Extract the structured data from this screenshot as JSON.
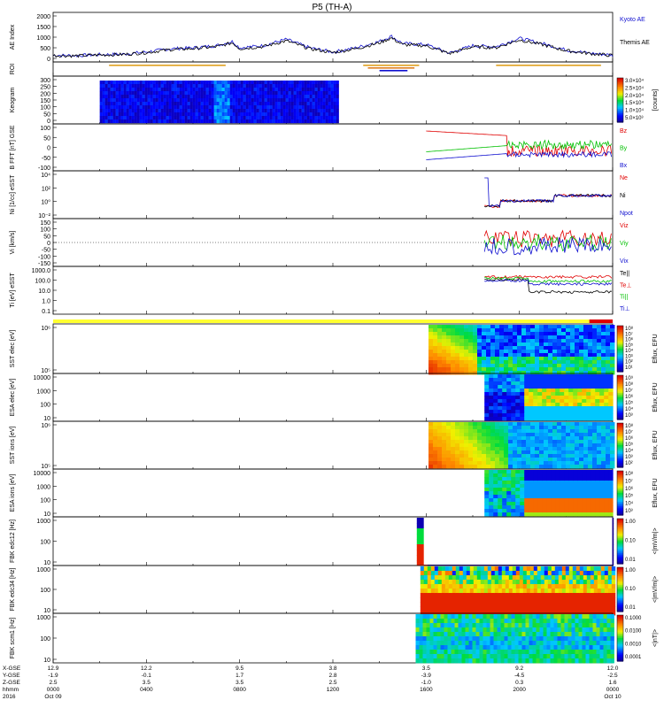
{
  "title": "P5 (TH-A)",
  "colors": {
    "blue": "#1010d0",
    "red": "#e00000",
    "green": "#00c000",
    "black": "#000000",
    "yellow": "#ffff30",
    "orange": "#e0a020"
  },
  "chart_data": [
    {
      "type": "line",
      "panel": "ae",
      "ylabel": "AE Index",
      "ylim": [
        0,
        2000
      ],
      "yticks": [
        "2000",
        "1500",
        "1000",
        "500",
        "0"
      ],
      "series": [
        {
          "name": "Kyoto AE",
          "color": "#1010d0"
        },
        {
          "name": "Themis AE",
          "color": "#000000"
        }
      ],
      "hours": [
        0,
        1,
        2,
        3,
        4,
        5,
        6,
        7,
        7.7,
        8,
        9,
        10,
        11,
        12,
        13,
        14,
        14.5,
        15,
        16,
        17,
        18,
        19,
        20,
        21,
        22,
        23,
        24
      ],
      "values": [
        150,
        130,
        180,
        200,
        300,
        450,
        500,
        600,
        800,
        500,
        600,
        900,
        500,
        300,
        500,
        800,
        1050,
        700,
        650,
        250,
        600,
        550,
        950,
        700,
        400,
        250,
        150
      ]
    },
    {
      "type": "bar",
      "panel": "roi",
      "ylabel": "ROI"
    },
    {
      "type": "heatmap",
      "panel": "keogram",
      "ylabel": "Keogram",
      "yticks": [
        "300",
        "250",
        "200",
        "150",
        "100",
        "50",
        "0"
      ],
      "colorbar": [
        "3.0×10⁴",
        "2.5×10⁴",
        "2.0×10⁴",
        "1.5×10⁴",
        "1.0×10⁴",
        "5.0×10³"
      ],
      "cbunit": "[counts]"
    },
    {
      "type": "line",
      "panel": "bfield",
      "ylabel": "B FFT [nT] GSE",
      "yticks": [
        "100",
        "50",
        "0",
        "-50",
        "-100"
      ],
      "series": [
        {
          "name": "Bz",
          "color": "#e00000"
        },
        {
          "name": "By",
          "color": "#00c000"
        },
        {
          "name": "Bx",
          "color": "#1010d0"
        }
      ]
    },
    {
      "type": "line",
      "panel": "density",
      "ylabel": "Ni [1/cc] eSST",
      "yticks": [
        "10⁴",
        "10²",
        "10⁰",
        "10⁻²"
      ],
      "series": [
        {
          "name": "Ne",
          "color": "#e00000"
        },
        {
          "name": "Ni",
          "color": "#000000"
        },
        {
          "name": "Npot",
          "color": "#1010d0"
        }
      ]
    },
    {
      "type": "line",
      "panel": "velocity",
      "ylabel": "Vi [km/s]",
      "yticks": [
        "150",
        "100",
        "50",
        "0",
        "-50",
        "-100",
        "-150"
      ],
      "series": [
        {
          "name": "Viz",
          "color": "#e00000"
        },
        {
          "name": "Viy",
          "color": "#00c000"
        },
        {
          "name": "Vix",
          "color": "#1010d0"
        }
      ]
    },
    {
      "type": "line",
      "panel": "temp",
      "ylabel": "Ti [eV] eSST",
      "yticks": [
        "1000.0",
        "100.0",
        "10.0",
        "1.0",
        "0.1"
      ],
      "series": [
        {
          "name": "Te||",
          "color": "#000000"
        },
        {
          "name": "Te⊥",
          "color": "#e00000"
        },
        {
          "name": "Ti||",
          "color": "#00c000"
        },
        {
          "name": "Ti⊥",
          "color": "#1010d0"
        }
      ]
    },
    {
      "type": "heatmap",
      "panel": "sst_e",
      "ylabel": "SST elec [eV]",
      "yticks": [
        "10⁶",
        "10⁵"
      ],
      "colorbar": [
        "10⁸",
        "10⁷",
        "10⁶",
        "10⁵",
        "10⁴",
        "10³",
        "10²",
        "10¹"
      ],
      "cbunit": "Eflux, EFU"
    },
    {
      "type": "heatmap",
      "panel": "esa_e",
      "ylabel": "ESA elec [eV]",
      "yticks": [
        "10000",
        "1000",
        "100",
        "10"
      ],
      "colorbar": [
        "10⁹",
        "10⁸",
        "10⁷",
        "10⁶",
        "10⁵",
        "10⁴",
        "10³"
      ],
      "cbunit": "Eflux, EFU"
    },
    {
      "type": "heatmap",
      "panel": "sst_i",
      "ylabel": "SST ions [eV]",
      "yticks": [
        "10⁶",
        "10⁵"
      ],
      "colorbar": [
        "10⁸",
        "10⁷",
        "10⁶",
        "10⁵",
        "10⁴",
        "10³",
        "10²"
      ],
      "cbunit": "Eflux, EFU"
    },
    {
      "type": "heatmap",
      "panel": "esa_i",
      "ylabel": "ESA ions [eV]",
      "yticks": [
        "10000",
        "1000",
        "100",
        "10"
      ],
      "colorbar": [
        "10⁸",
        "10⁷",
        "10⁶",
        "10⁵",
        "10⁴",
        "10³"
      ],
      "cbunit": "Eflux, EFU"
    },
    {
      "type": "heatmap",
      "panel": "fbk1",
      "ylabel": "FBK edc12 [Hz]",
      "yticks": [
        "1000",
        "100",
        "10"
      ],
      "colorbar": [
        "1.00",
        "0.10",
        "0.01"
      ],
      "cbunit": "<|mV/m|>"
    },
    {
      "type": "heatmap",
      "panel": "fbk2",
      "ylabel": "FBK edc34 [Hz]",
      "yticks": [
        "1000",
        "100",
        "10"
      ],
      "colorbar": [
        "1.00",
        "0.10",
        "0.01"
      ],
      "cbunit": "<|mV/m|>"
    },
    {
      "type": "heatmap",
      "panel": "fbk3",
      "ylabel": "FBK scm1 [Hz]",
      "yticks": [
        "1000",
        "100",
        "10"
      ],
      "colorbar": [
        "0.1000",
        "0.0100",
        "0.0010",
        "0.0001"
      ],
      "cbunit": "<|nT|>"
    }
  ],
  "ephemeris": {
    "labels": [
      "X-GSE",
      "Y-GSE",
      "Z-GSE",
      "hhmm",
      "2016"
    ],
    "columns": [
      [
        "12.9",
        "-1.9",
        "2.5",
        "0000",
        "Oct 09"
      ],
      [
        "12.2",
        "-0.1",
        "3.5",
        "0400",
        ""
      ],
      [
        "9.5",
        "1.7",
        "3.5",
        "0800",
        ""
      ],
      [
        "3.8",
        "2.8",
        "2.5",
        "1200",
        ""
      ],
      [
        "3.5",
        "-3.9",
        "-1.0",
        "1600",
        ""
      ],
      [
        "9.2",
        "-4.5",
        "0.3",
        "2000",
        ""
      ],
      [
        "12.0",
        "-2.5",
        "1.6",
        "0000",
        "Oct 10"
      ]
    ],
    "tick_hours": [
      0,
      4,
      8,
      12,
      16,
      20,
      24
    ]
  }
}
